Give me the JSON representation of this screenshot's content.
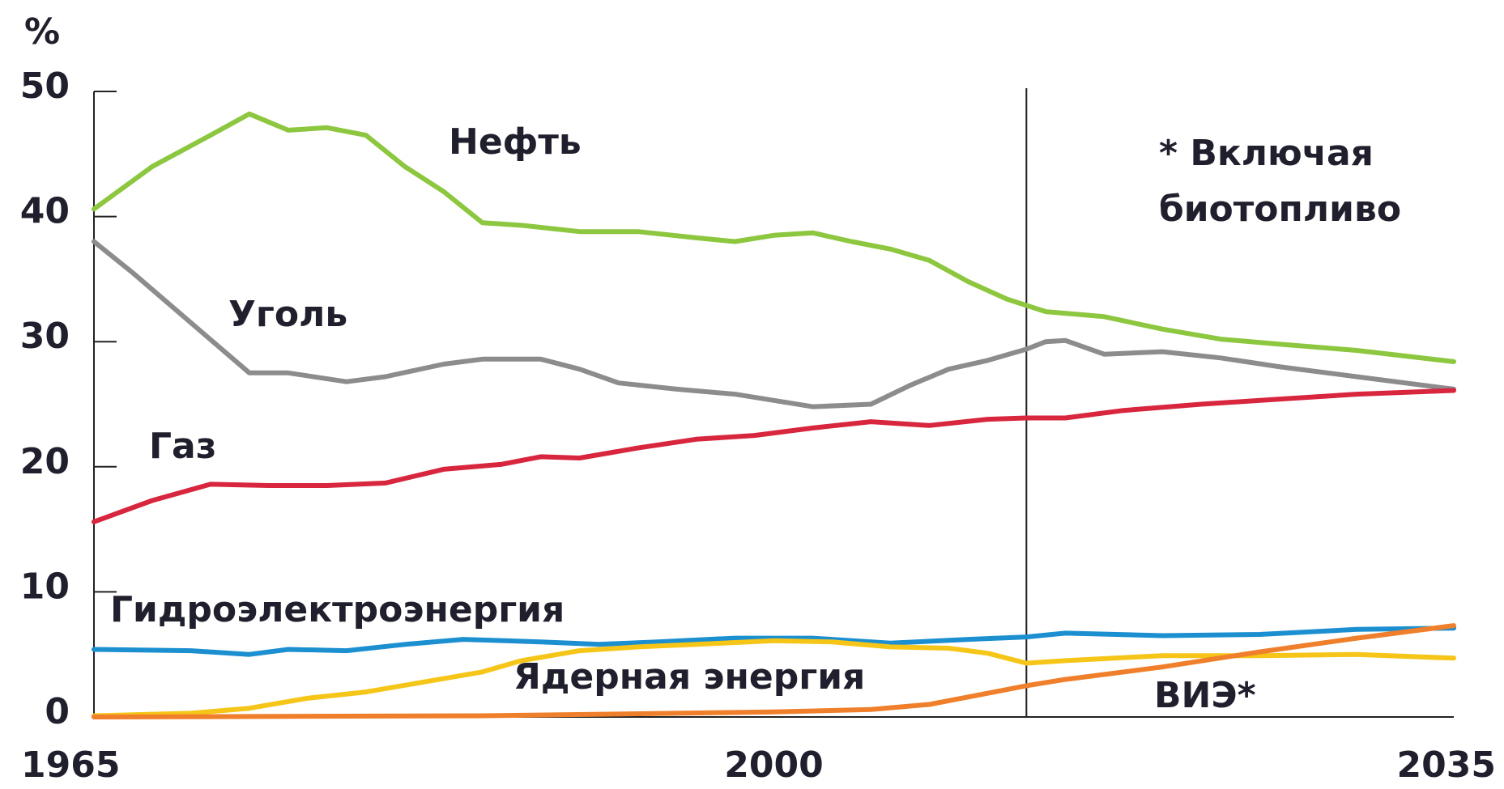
{
  "chart_data": {
    "type": "line",
    "y_label": "%",
    "xlim": [
      1965,
      2035
    ],
    "xticks": [
      1965,
      2000,
      2035
    ],
    "ylim": [
      0,
      50
    ],
    "yticks": [
      0,
      10,
      20,
      30,
      40,
      50
    ],
    "vline": 2013,
    "note": [
      "* Включая",
      "биотопливо"
    ],
    "series": [
      {
        "name": "Нефть",
        "color": "#8dc63f",
        "x": [
          1965,
          1968,
          1971,
          1973,
          1975,
          1977,
          1979,
          1981,
          1983,
          1985,
          1987,
          1990,
          1993,
          1996,
          1998,
          2000,
          2002,
          2004,
          2006,
          2008,
          2010,
          2012,
          2014,
          2017,
          2020,
          2023,
          2026,
          2030,
          2035
        ],
        "values": [
          40.6,
          44,
          46.5,
          48.2,
          46.9,
          47.1,
          46.5,
          44,
          42,
          39.5,
          39.3,
          38.8,
          38.8,
          38.3,
          38.0,
          38.5,
          38.7,
          38.0,
          37.4,
          36.5,
          34.8,
          33.4,
          32.4,
          32.0,
          31.0,
          30.2,
          29.8,
          29.3,
          28.4
        ]
      },
      {
        "name": "Уголь",
        "color": "#8c8c8c",
        "x": [
          1965,
          1967,
          1970,
          1973,
          1975,
          1978,
          1980,
          1983,
          1985,
          1988,
          1990,
          1992,
          1995,
          1998,
          2002,
          2005,
          2007,
          2009,
          2011,
          2013,
          2014,
          2015,
          2017,
          2020,
          2023,
          2026,
          2030,
          2035
        ],
        "values": [
          38.0,
          35.5,
          31.5,
          27.5,
          27.5,
          26.8,
          27.2,
          28.2,
          28.6,
          28.6,
          27.8,
          26.7,
          26.2,
          25.8,
          24.8,
          25.0,
          26.5,
          27.8,
          28.5,
          29.4,
          30.0,
          30.1,
          29.0,
          29.2,
          28.7,
          28.0,
          27.2,
          26.2
        ]
      },
      {
        "name": "Газ",
        "color": "#d7263d",
        "x": [
          1965,
          1968,
          1971,
          1974,
          1977,
          1980,
          1983,
          1986,
          1988,
          1990,
          1993,
          1996,
          1999,
          2002,
          2005,
          2008,
          2011,
          2013,
          2015,
          2018,
          2022,
          2026,
          2030,
          2035
        ],
        "values": [
          15.6,
          17.3,
          18.6,
          18.5,
          18.5,
          18.7,
          19.8,
          20.2,
          20.8,
          20.7,
          21.5,
          22.2,
          22.5,
          23.1,
          23.6,
          23.3,
          23.8,
          23.9,
          23.9,
          24.5,
          25.0,
          25.4,
          25.8,
          26.1
        ]
      },
      {
        "name": "Гидроэлектроэнергия",
        "color": "#1b8fcf",
        "x": [
          1965,
          1970,
          1973,
          1975,
          1978,
          1981,
          1984,
          1988,
          1991,
          1994,
          1998,
          2002,
          2006,
          2010,
          2013,
          2015,
          2020,
          2025,
          2030,
          2035
        ],
        "values": [
          5.4,
          5.3,
          5.0,
          5.4,
          5.3,
          5.8,
          6.2,
          6.0,
          5.8,
          6.0,
          6.3,
          6.3,
          5.9,
          6.2,
          6.4,
          6.7,
          6.5,
          6.6,
          7.0,
          7.1
        ]
      },
      {
        "name": "Ядерная энергия",
        "color": "#f5c518",
        "x": [
          1965,
          1970,
          1973,
          1976,
          1979,
          1982,
          1985,
          1987,
          1990,
          1993,
          1996,
          2000,
          2003,
          2006,
          2009,
          2011,
          2013,
          2015,
          2020,
          2025,
          2030,
          2035
        ],
        "values": [
          0.1,
          0.3,
          0.7,
          1.5,
          2.0,
          2.8,
          3.6,
          4.5,
          5.3,
          5.6,
          5.8,
          6.1,
          6.0,
          5.6,
          5.5,
          5.1,
          4.3,
          4.5,
          4.9,
          4.9,
          5.0,
          4.7
        ]
      },
      {
        "name": "ВИЭ*",
        "color": "#ef7f2a",
        "x": [
          1965,
          1985,
          1995,
          2000,
          2005,
          2008,
          2010,
          2013,
          2015,
          2020,
          2025,
          2030,
          2035
        ],
        "values": [
          0,
          0.1,
          0.3,
          0.4,
          0.6,
          1.0,
          1.6,
          2.5,
          3.0,
          4.0,
          5.2,
          6.3,
          7.3
        ]
      }
    ]
  }
}
